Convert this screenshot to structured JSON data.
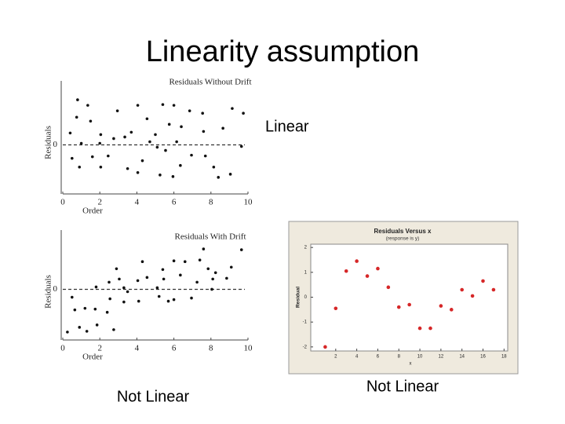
{
  "title": "Linearity assumption",
  "labels": [
    "Linear",
    "Not Linear",
    "Not Linear"
  ],
  "chart_data": [
    {
      "type": "scatter",
      "title": "Residuals Without Drift",
      "x_label": "Order",
      "y_label": "Residuals",
      "color": "#111111",
      "grid": "dashed-zero",
      "xlim": [
        0,
        10
      ],
      "ylim": [
        -3,
        3.3
      ],
      "xticks": [
        0,
        2,
        4,
        6,
        8,
        10
      ],
      "yticks": [
        0
      ],
      "x": [
        0.8,
        0.4,
        0.5,
        0.75,
        0.9,
        1.0,
        1.35,
        1.5,
        1.6,
        2.0,
        2.05,
        2.05,
        2.45,
        2.75,
        2.95,
        3.35,
        3.5,
        3.7,
        4.05,
        4.05,
        4.3,
        4.55,
        4.7,
        5.0,
        5.1,
        5.25,
        5.4,
        5.55,
        5.75,
        5.95,
        6.0,
        6.15,
        6.35,
        6.4,
        6.85,
        6.95,
        7.55,
        7.6,
        7.7,
        8.15,
        8.4,
        8.65,
        9.05,
        9.15,
        9.65,
        9.75
      ],
      "values": [
        2.85,
        0.75,
        -0.85,
        1.75,
        -1.4,
        0.1,
        2.5,
        1.5,
        -0.75,
        0.1,
        0.65,
        -1.4,
        -0.7,
        0.4,
        2.15,
        0.5,
        -1.5,
        0.8,
        2.5,
        -1.75,
        -1.0,
        1.65,
        0.2,
        0.65,
        -0.15,
        -1.9,
        2.55,
        -0.35,
        1.3,
        -2.0,
        2.5,
        0.2,
        -1.3,
        1.15,
        2.15,
        -0.65,
        2.0,
        0.85,
        -0.7,
        -1.4,
        -2.05,
        1.05,
        -1.85,
        2.3,
        -0.1,
        2.0
      ]
    },
    {
      "type": "scatter",
      "title": "Residuals With Drift",
      "x_label": "Order",
      "y_label": "Residuals",
      "color": "#111111",
      "grid": "dashed-zero",
      "xlim": [
        0,
        10
      ],
      "ylim": [
        -3.3,
        3
      ],
      "xticks": [
        0,
        2,
        4,
        6,
        8,
        10
      ],
      "yticks": [
        0
      ],
      "x": [
        0.25,
        0.5,
        0.65,
        0.9,
        1.2,
        1.3,
        1.75,
        1.8,
        1.85,
        2.4,
        2.5,
        2.55,
        2.75,
        2.9,
        3.05,
        3.3,
        3.3,
        3.5,
        4.05,
        4.1,
        4.3,
        4.55,
        5.1,
        5.2,
        5.4,
        5.45,
        5.7,
        6.0,
        6.0,
        6.35,
        6.6,
        6.95,
        7.25,
        7.4,
        7.6,
        7.85,
        8.05,
        8.1,
        8.25,
        8.85,
        9.1,
        9.65
      ],
      "values": [
        -2.7,
        -0.5,
        -1.3,
        -2.4,
        -1.2,
        -2.65,
        -1.25,
        0.15,
        -2.25,
        -1.45,
        0.45,
        -0.6,
        -2.55,
        1.3,
        0.65,
        0.1,
        -0.8,
        -0.15,
        0.55,
        -0.75,
        1.75,
        0.75,
        0.1,
        -0.45,
        1.25,
        0.65,
        -0.75,
        -0.65,
        1.8,
        0.9,
        1.75,
        -0.55,
        0.45,
        1.85,
        2.55,
        1.3,
        0,
        0.65,
        1.05,
        0.7,
        1.4,
        2.5
      ]
    },
    {
      "type": "scatter",
      "title": "Residuals Versus x",
      "subtitle": "(response is y)",
      "x_label": "x",
      "y_label": "Residual",
      "color": "#d62728",
      "grid": "none",
      "xlim": [
        0,
        18.2
      ],
      "ylim": [
        -2.1,
        2.1
      ],
      "xticks": [
        2,
        4,
        6,
        8,
        10,
        12,
        14,
        16,
        18
      ],
      "yticks": [
        -2,
        -1,
        0,
        1,
        2
      ],
      "x": [
        1,
        2,
        3,
        4,
        5,
        6,
        7,
        8,
        9,
        10,
        11,
        12,
        13,
        14,
        15,
        16,
        17
      ],
      "values": [
        -2,
        -0.45,
        1.05,
        1.45,
        0.85,
        1.15,
        0.4,
        -0.4,
        -0.3,
        -1.25,
        -1.25,
        -0.35,
        -0.5,
        0.3,
        0.05,
        0.65,
        0.3
      ]
    }
  ]
}
